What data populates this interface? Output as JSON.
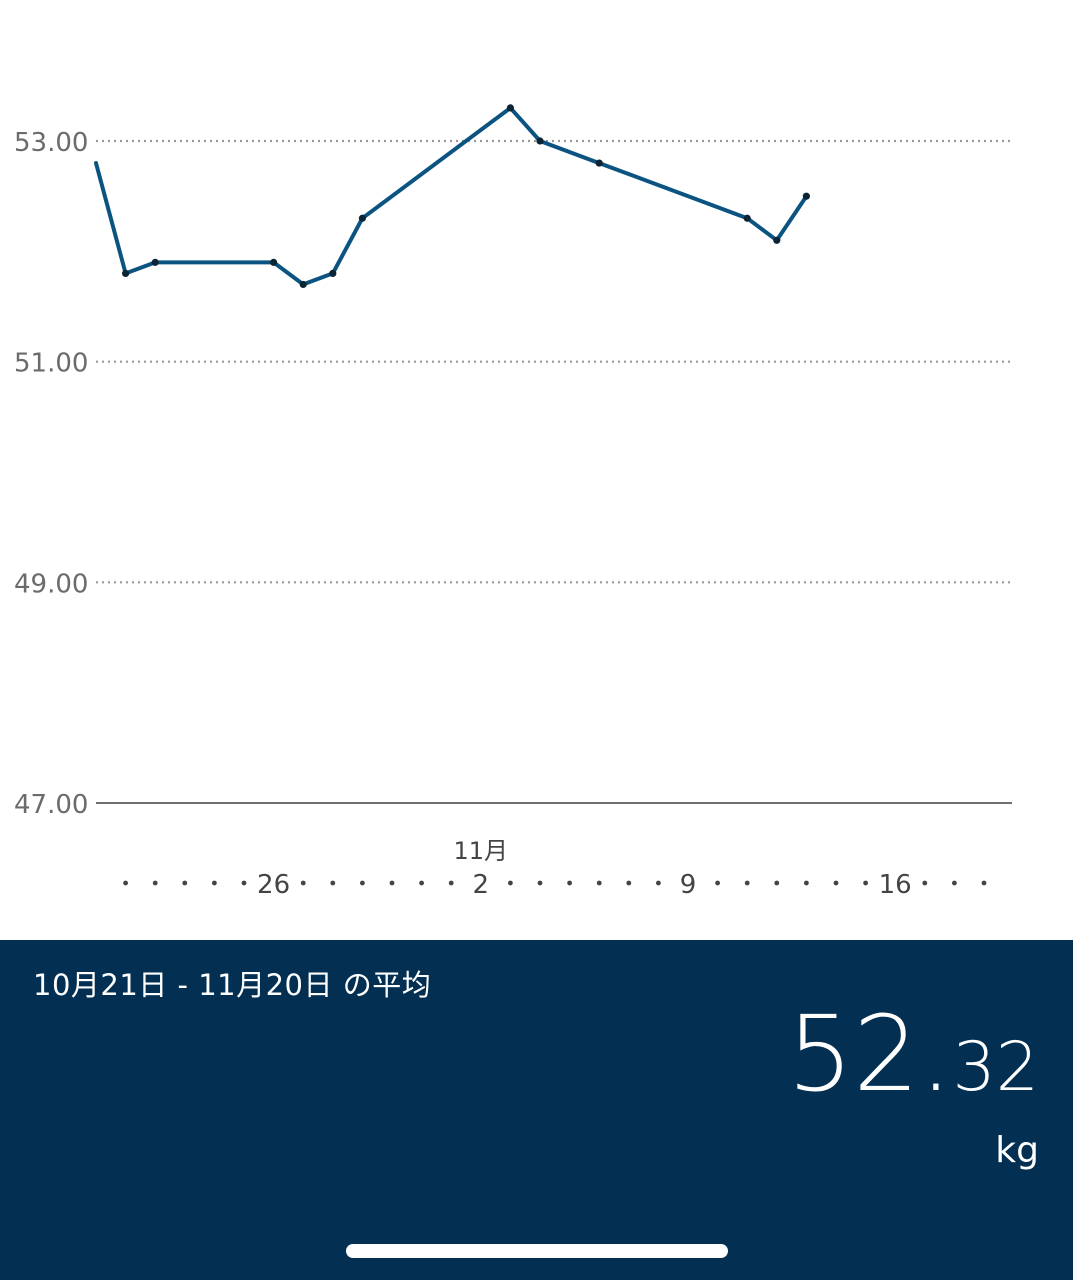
{
  "chart_data": {
    "type": "line",
    "title": "",
    "xlabel": "",
    "ylabel": "",
    "y_ticks": [
      "53.00",
      "51.00",
      "49.00",
      "47.00"
    ],
    "ylim": [
      47,
      53.3
    ],
    "x_tick_labels": [
      {
        "date": "10月26日",
        "label": "26"
      },
      {
        "date": "11月2日",
        "label": "2"
      },
      {
        "date": "11月9日",
        "label": "9"
      },
      {
        "date": "11月16日",
        "label": "16"
      }
    ],
    "month_label": {
      "date": "11月2日",
      "label": "11月"
    },
    "x_range": [
      "10月20日",
      "11月20日"
    ],
    "grid": "dotted horizontal",
    "series": [
      {
        "color": "#0b5482",
        "points": [
          {
            "x": "10月20日",
            "y": 52.8
          },
          {
            "x": "10月21日",
            "y": 51.8
          },
          {
            "x": "10月22日",
            "y": 51.9
          },
          {
            "x": "10月26日",
            "y": 51.9
          },
          {
            "x": "10月27日",
            "y": 51.7
          },
          {
            "x": "10月28日",
            "y": 51.8
          },
          {
            "x": "10月29日",
            "y": 52.3
          },
          {
            "x": "11月3日",
            "y": 53.3
          },
          {
            "x": "11月4日",
            "y": 53.0
          },
          {
            "x": "11月6日",
            "y": 52.8
          },
          {
            "x": "11月11日",
            "y": 52.3
          },
          {
            "x": "11月12日",
            "y": 52.1
          },
          {
            "x": "11月13日",
            "y": 52.5
          }
        ]
      }
    ]
  },
  "summary": {
    "range_label": "10月21日 - 11月20日 の平均",
    "average_int": "52.",
    "average_dec": "32",
    "unit": "kg"
  },
  "colors": {
    "line": "#0b5482",
    "panel_bg": "#022f52",
    "grid": "#9a9a9a"
  }
}
